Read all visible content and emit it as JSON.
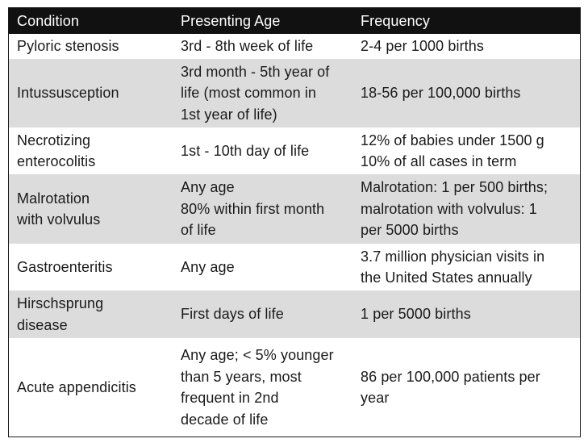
{
  "table": {
    "headers": [
      "Condition",
      "Presenting Age",
      "Frequency"
    ],
    "rows": [
      {
        "condition": [
          "Pyloric stenosis"
        ],
        "age": [
          "3rd - 8th week of life"
        ],
        "frequency": [
          "2-4 per 1000 births"
        ]
      },
      {
        "condition": [
          "Intussusception"
        ],
        "age": [
          "3rd month - 5th year of",
          "life (most common in",
          "1st year of life)"
        ],
        "frequency": [
          "18-56 per 100,000 births"
        ]
      },
      {
        "condition": [
          "Necrotizing",
          "enterocolitis"
        ],
        "age": [
          "1st - 10th day of life"
        ],
        "frequency": [
          "12% of babies under 1500 g",
          "10% of all cases in term"
        ]
      },
      {
        "condition": [
          "Malrotation",
          "with volvulus"
        ],
        "age": [
          "Any age",
          "80% within first month",
          "of life"
        ],
        "frequency": [
          "Malrotation: 1 per 500 births;",
          "malrotation with volvulus: 1",
          "per 5000 births"
        ]
      },
      {
        "condition": [
          "Gastroenteritis"
        ],
        "age": [
          "Any age"
        ],
        "frequency": [
          "3.7 million physician visits in",
          "the United States annually"
        ]
      },
      {
        "condition": [
          "Hirschsprung",
          "disease"
        ],
        "age": [
          "First days of life"
        ],
        "frequency": [
          "1 per 5000 births"
        ]
      },
      {
        "condition": [
          "Acute appendicitis"
        ],
        "age": [
          "Any age; < 5% younger",
          "than 5 years, most",
          "frequent in 2nd",
          "decade of life"
        ],
        "frequency": [
          "86 per 100,000 patients per",
          "year"
        ]
      }
    ]
  }
}
